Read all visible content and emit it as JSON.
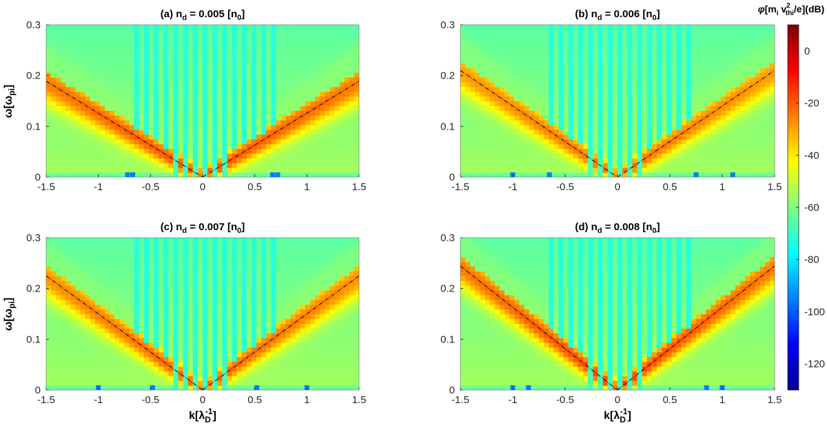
{
  "figure": {
    "colorbar": {
      "label": "φ[m_i v_thi^2/e](dB)",
      "label_parts": {
        "phi": "φ",
        "open": "[m",
        "sub_i": "i",
        "v": " v",
        "sup": "2",
        "sub_thi": "thi",
        "close": "/e](dB)"
      },
      "range": [
        -130,
        10
      ],
      "ticks": [
        0,
        -20,
        -40,
        -60,
        -80,
        -100,
        -120
      ],
      "colormap": "jet"
    }
  },
  "chart_data": [
    {
      "id": "a",
      "type": "heatmap",
      "title": "(a)  n_d = 0.005 [n_0]",
      "title_parts": {
        "pre": "(a)  n",
        "sub": "d",
        "mid": " = 0.005 [n",
        "sub2": "0",
        "post": "]"
      },
      "xlabel": "",
      "ylabel": "ω[ω_pi]",
      "xlim": [
        -1.5,
        1.5
      ],
      "ylim": [
        0,
        0.3
      ],
      "xticks": [
        "-1.5",
        "-1",
        "-0.5",
        "0",
        "0.5",
        "1",
        "1.5"
      ],
      "yticks": [
        "0",
        "0.1",
        "0.2",
        "0.3"
      ],
      "dispersion_slope": 0.126,
      "peak_db": -18,
      "background_db": -55,
      "vertical_stripe_db": -72,
      "low_freq_spots_k": [
        -0.72,
        -0.67,
        0.67,
        0.72
      ]
    },
    {
      "id": "b",
      "type": "heatmap",
      "title": "(b)  n_d = 0.006 [n_0]",
      "title_parts": {
        "pre": "(b)  n",
        "sub": "d",
        "mid": " = 0.006 [n",
        "sub2": "0",
        "post": "]"
      },
      "xlabel": "",
      "ylabel": "",
      "xlim": [
        -1.5,
        1.5
      ],
      "ylim": [
        0,
        0.3
      ],
      "xticks": [
        "-1.5",
        "-1",
        "-0.5",
        "0",
        "0.5",
        "1",
        "1.5"
      ],
      "yticks": [
        "0",
        "0.1",
        "0.2",
        "0.3"
      ],
      "dispersion_slope": 0.14,
      "peak_db": -22,
      "background_db": -55,
      "vertical_stripe_db": -72,
      "low_freq_spots_k": [
        -1.0,
        -0.65,
        0.75,
        1.1
      ]
    },
    {
      "id": "c",
      "type": "heatmap",
      "title": "(c)  n_d = 0.007 [n_0]",
      "title_parts": {
        "pre": "(c)  n",
        "sub": "d",
        "mid": " = 0.007 [n",
        "sub2": "0",
        "post": "]"
      },
      "xlabel": "k[λ_D^-1]",
      "ylabel": "ω[ω_pi]",
      "xlim": [
        -1.5,
        1.5
      ],
      "ylim": [
        0,
        0.3
      ],
      "xticks": [
        "-1.5",
        "-1",
        "-0.5",
        "0",
        "0.5",
        "1",
        "1.5"
      ],
      "yticks": [
        "0",
        "0.1",
        "0.2",
        "0.3"
      ],
      "dispersion_slope": 0.15,
      "peak_db": -20,
      "background_db": -55,
      "vertical_stripe_db": -72,
      "low_freq_spots_k": [
        -1.0,
        -0.48,
        0.52,
        1.0
      ]
    },
    {
      "id": "d",
      "type": "heatmap",
      "title": "(d)  n_d = 0.008 [n_0]",
      "title_parts": {
        "pre": "(d)  n",
        "sub": "d",
        "mid": " = 0.008 [n",
        "sub2": "0",
        "post": "]"
      },
      "xlabel": "k[λ_D^-1]",
      "ylabel": "",
      "xlim": [
        -1.5,
        1.5
      ],
      "ylim": [
        0,
        0.3
      ],
      "xticks": [
        "-1.5",
        "-1",
        "-0.5",
        "0",
        "0.5",
        "1",
        "1.5"
      ],
      "yticks": [
        "0",
        "0.1",
        "0.2",
        "0.3"
      ],
      "dispersion_slope": 0.163,
      "peak_db": -16,
      "background_db": -55,
      "vertical_stripe_db": -72,
      "low_freq_spots_k": [
        -1.0,
        -0.85,
        0.85,
        1.0
      ]
    }
  ]
}
